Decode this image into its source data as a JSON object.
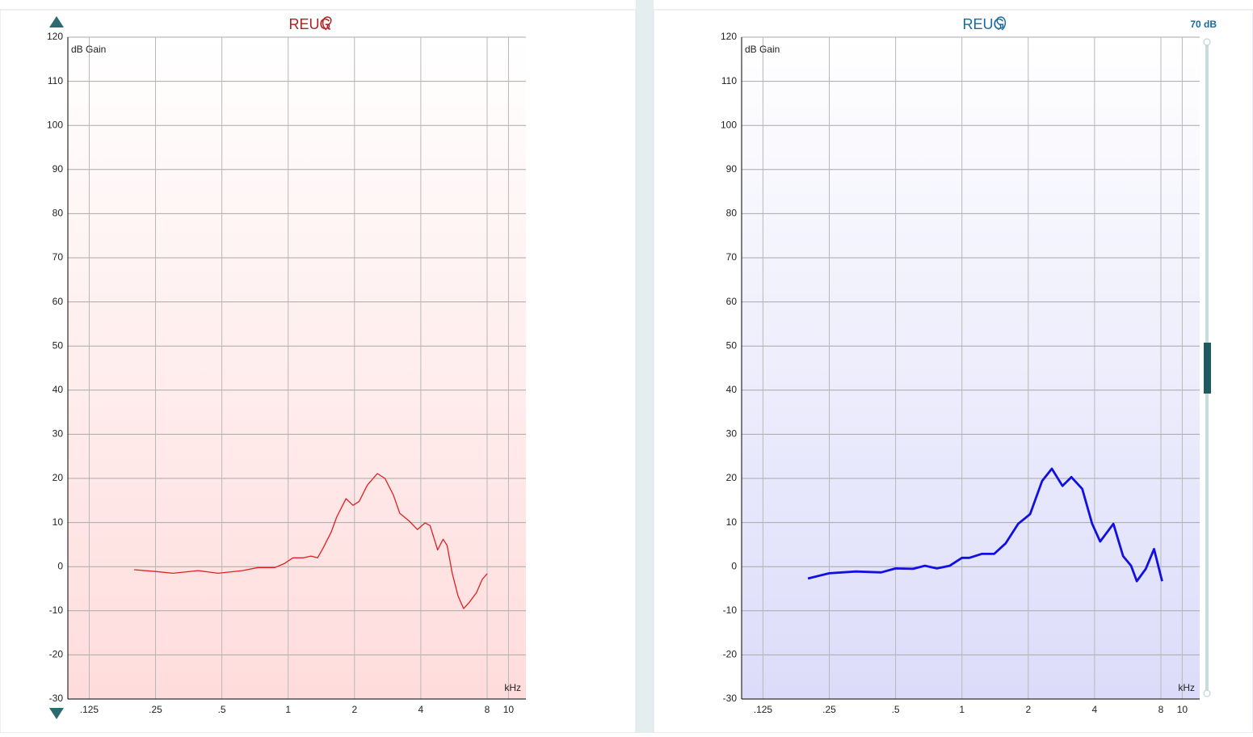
{
  "chart_data": [
    {
      "type": "line",
      "title": "REUG",
      "y_label": "dB Gain",
      "x_label": "kHz",
      "log_x": true,
      "grid": true,
      "color": "#e02020",
      "x": [
        0.2,
        0.25,
        0.3,
        0.39,
        0.48,
        0.62,
        0.73,
        0.87,
        0.96,
        1.05,
        1.17,
        1.27,
        1.36,
        1.44,
        1.57,
        1.66,
        1.83,
        1.97,
        2.1,
        2.29,
        2.54,
        2.75,
        3.0,
        3.21,
        3.55,
        3.86,
        4.18,
        4.41,
        4.77,
        5.05,
        5.27,
        5.56,
        5.9,
        6.26,
        6.64,
        7.16,
        7.6,
        8.0
      ],
      "values": [
        -0.7,
        -1.1,
        -1.5,
        -0.9,
        -1.5,
        -0.9,
        -0.2,
        -0.2,
        0.7,
        2.0,
        2.0,
        2.4,
        2.0,
        4.2,
        7.9,
        11.2,
        15.4,
        13.9,
        14.8,
        18.5,
        21.1,
        20.0,
        16.3,
        12.1,
        10.3,
        8.4,
        9.9,
        9.3,
        3.8,
        6.2,
        4.8,
        -1.6,
        -6.6,
        -9.5,
        -8.1,
        -5.9,
        -2.9,
        -1.6
      ],
      "xlim": [
        0.1,
        12
      ],
      "ylim": [
        -30,
        120
      ],
      "xticks": [
        {
          "value": 0.125,
          "label": ".125"
        },
        {
          "value": 0.25,
          "label": ".25"
        },
        {
          "value": 0.5,
          "label": ".5"
        },
        1,
        2,
        4,
        8,
        10
      ],
      "yticks": [
        120,
        110,
        100,
        90,
        80,
        70,
        60,
        50,
        40,
        30,
        20,
        10,
        0,
        -10,
        -20,
        -30
      ]
    },
    {
      "type": "line",
      "title": "REUG",
      "y_label": "dB Gain",
      "x_label": "kHz",
      "annotation": "70 dB",
      "log_x": true,
      "grid": true,
      "color": "#1010e0",
      "x": [
        0.2,
        0.25,
        0.33,
        0.43,
        0.5,
        0.6,
        0.68,
        0.77,
        0.88,
        1.0,
        1.08,
        1.23,
        1.4,
        1.58,
        1.8,
        2.04,
        2.31,
        2.56,
        2.86,
        3.14,
        3.52,
        3.9,
        4.24,
        4.87,
        5.39,
        5.86,
        6.22,
        6.83,
        7.45,
        8.1
      ],
      "values": [
        -2.7,
        -1.5,
        -1.1,
        -1.3,
        -0.4,
        -0.5,
        0.2,
        -0.4,
        0.2,
        2.0,
        2.0,
        2.9,
        2.9,
        5.3,
        9.7,
        11.9,
        19.4,
        22.2,
        18.3,
        20.3,
        17.6,
        9.7,
        5.7,
        9.7,
        2.4,
        0.2,
        -3.3,
        -0.5,
        4.0,
        -3.3
      ],
      "xlim": [
        0.1,
        12
      ],
      "ylim": [
        -30,
        120
      ],
      "xticks": [
        {
          "value": 0.125,
          "label": ".125"
        },
        {
          "value": 0.25,
          "label": ".25"
        },
        {
          "value": 0.5,
          "label": ".5"
        },
        1,
        2,
        4,
        8,
        10
      ],
      "yticks": [
        120,
        110,
        100,
        90,
        80,
        70,
        60,
        50,
        40,
        30,
        20,
        10,
        0,
        -10,
        -20,
        -30
      ]
    }
  ]
}
